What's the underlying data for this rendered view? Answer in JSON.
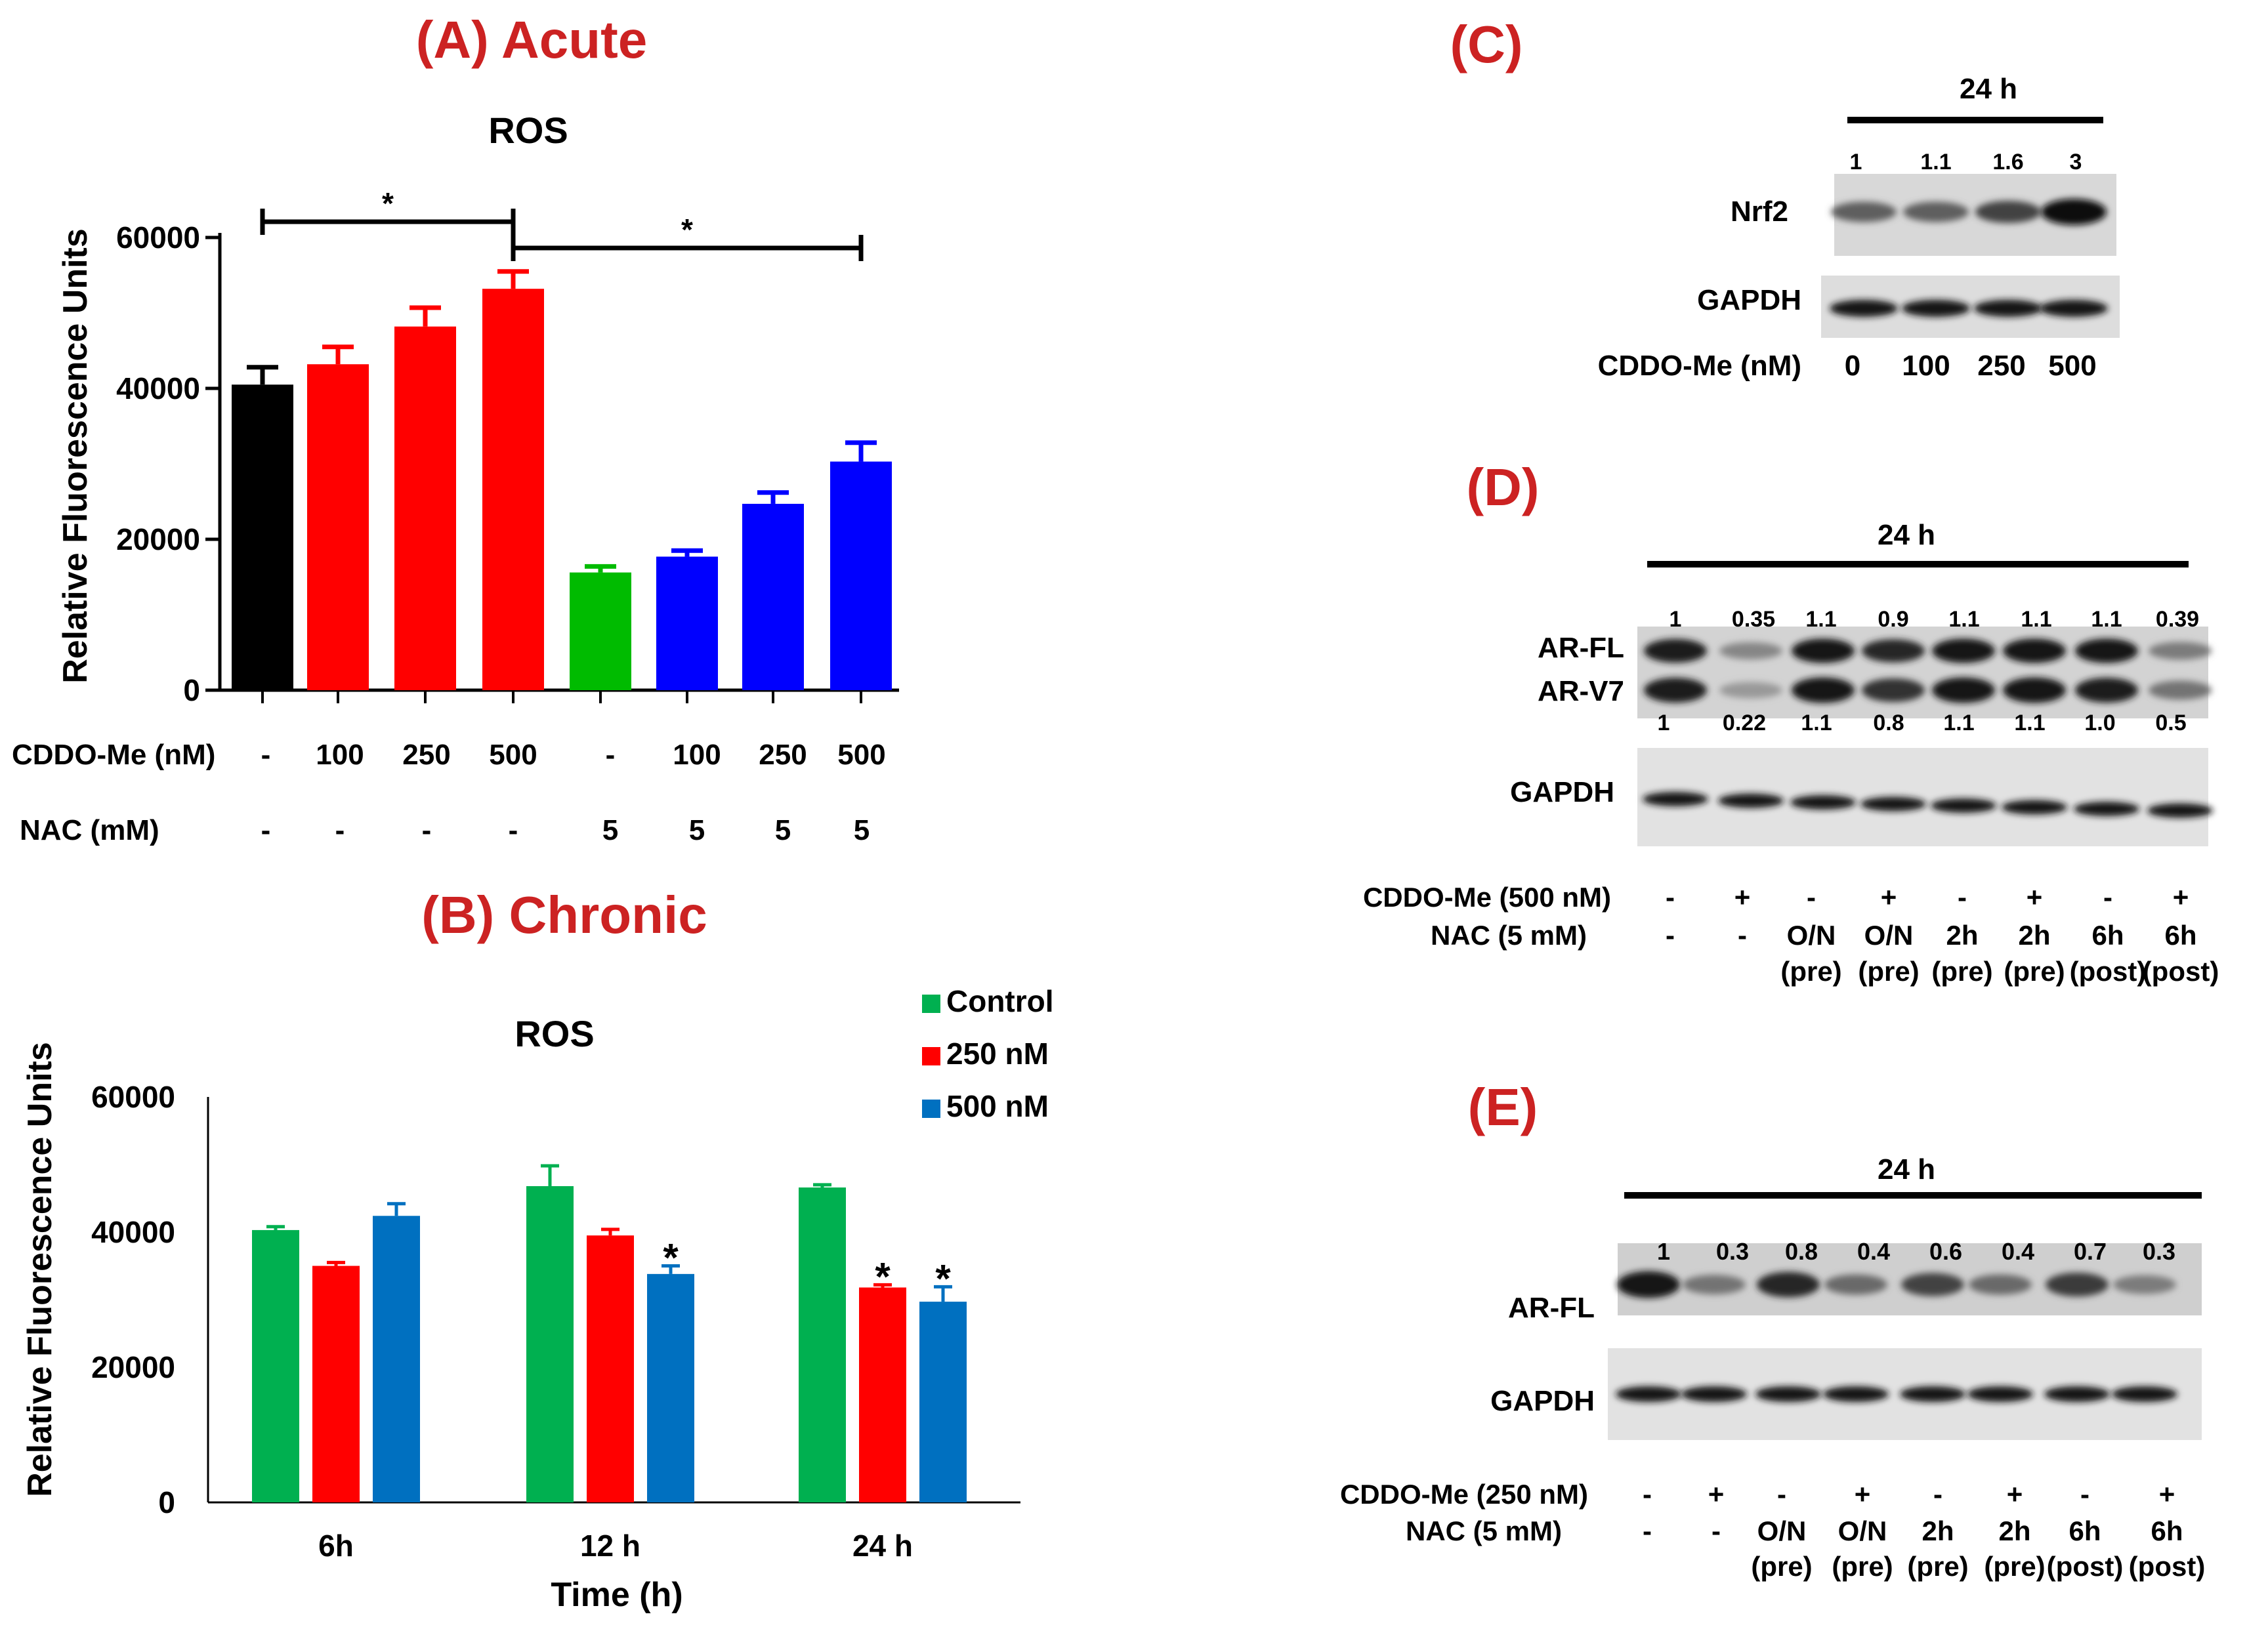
{
  "panel_titles": {
    "a": "(A) Acute",
    "b": "(B) Chronic",
    "c": "(C)",
    "d": "(D)",
    "e": "(E)"
  },
  "colors": {
    "panel_title": "#cc2222",
    "black": "#000000",
    "red": "#ff0000",
    "green": "#00bb00",
    "blue": "#0000ff",
    "series_control": "#00b050",
    "series_250": "#ff0000",
    "series_500": "#0070c0"
  },
  "chart_data": [
    {
      "id": "A",
      "type": "bar",
      "title": "ROS",
      "ylabel": "Relative Fluorescence Units",
      "xlabel": "",
      "ylim": [
        0,
        60000
      ],
      "yticks": [
        "0",
        "20000",
        "40000",
        "60000"
      ],
      "values": [
        40500,
        43200,
        48200,
        53200,
        15600,
        17700,
        24700,
        30300
      ],
      "errors": [
        2300,
        2300,
        2500,
        2300,
        800,
        800,
        1500,
        2500
      ],
      "bar_colors": [
        "black",
        "red",
        "red",
        "red",
        "green",
        "blue",
        "blue",
        "blue"
      ],
      "row_labels": [
        "CDDO-Me (nM)",
        "NAC (mM)"
      ],
      "cddo_row": [
        "-",
        "100",
        "250",
        "500",
        "-",
        "100",
        "250",
        "500"
      ],
      "nac_row": [
        "-",
        "-",
        "-",
        "-",
        "5",
        "5",
        "5",
        "5"
      ],
      "significance": [
        {
          "from": 0,
          "to": 3,
          "label": "*"
        },
        {
          "from": 3,
          "to": 7,
          "label": "*"
        }
      ]
    },
    {
      "id": "B",
      "type": "bar",
      "title": "ROS",
      "ylabel": "Relative Fluorescence Units",
      "xlabel": "Time (h)",
      "ylim": [
        0,
        60000
      ],
      "yticks": [
        "0",
        "20000",
        "40000",
        "60000"
      ],
      "categories": [
        "6h",
        "12 h",
        "24 h"
      ],
      "series": [
        {
          "name": "Control",
          "values": [
            40300,
            46800,
            46600
          ],
          "errors": [
            500,
            3000,
            400
          ]
        },
        {
          "name": "250 nM",
          "values": [
            35000,
            39500,
            31800
          ],
          "errors": [
            500,
            900,
            400
          ]
        },
        {
          "name": "500 nM",
          "values": [
            42400,
            33800,
            29700
          ],
          "errors": [
            1800,
            1200,
            2200
          ]
        }
      ],
      "significance": [
        {
          "category": 1,
          "series": 2,
          "label": "*"
        },
        {
          "category": 2,
          "series": 1,
          "label": "*"
        },
        {
          "category": 2,
          "series": 2,
          "label": "*"
        }
      ]
    }
  ],
  "blot_c": {
    "time_label": "24 h",
    "quant": [
      "1",
      "1.1",
      "1.6",
      "3"
    ],
    "bands": [
      "Nrf2",
      "GAPDH"
    ],
    "dose_label": "CDDO-Me (nM)",
    "doses": [
      "0",
      "100",
      "250",
      "500"
    ],
    "intensity": [
      0.55,
      0.55,
      0.7,
      1.0
    ]
  },
  "blot_d": {
    "time_label": "24 h",
    "quant_top": [
      "1",
      "0.35",
      "1.1",
      "0.9",
      "1.1",
      "1.1",
      "1.1",
      "0.39"
    ],
    "quant_bottom": [
      "1",
      "0.22",
      "1.1",
      "0.8",
      "1.1",
      "1.1",
      "1.0",
      "0.5"
    ],
    "bands": [
      "AR-FL",
      "AR-V7",
      "GAPDH"
    ],
    "cddo_label": "CDDO-Me (500 nM)",
    "nac_label": "NAC (5 mM)",
    "cddo": [
      "-",
      "+",
      "-",
      "+",
      "-",
      "+",
      "-",
      "+"
    ],
    "nac": [
      "-",
      "-",
      "O/N",
      "O/N",
      "2h",
      "2h",
      "6h",
      "6h"
    ],
    "nac_sub": [
      "",
      "",
      "(pre)",
      "(pre)",
      "(pre)",
      "(pre)",
      "(post)",
      "(post)"
    ],
    "intensity_fl": [
      0.9,
      0.35,
      0.95,
      0.85,
      0.95,
      0.95,
      0.95,
      0.4
    ],
    "intensity_v7": [
      0.9,
      0.25,
      0.95,
      0.8,
      0.95,
      0.95,
      0.9,
      0.45
    ]
  },
  "blot_e": {
    "time_label": "24 h",
    "quant": [
      "1",
      "0.3",
      "0.8",
      "0.4",
      "0.6",
      "0.4",
      "0.7",
      "0.3"
    ],
    "bands": [
      "AR-FL",
      "GAPDH"
    ],
    "cddo_label": "CDDO-Me (250 nM)",
    "nac_label": "NAC (5 mM)",
    "cddo": [
      "-",
      "+",
      "-",
      "+",
      "-",
      "+",
      "-",
      "+"
    ],
    "nac": [
      "-",
      "-",
      "O/N",
      "O/N",
      "2h",
      "2h",
      "6h",
      "6h"
    ],
    "nac_sub": [
      "",
      "",
      "(pre)",
      "(pre)",
      "(pre)",
      "(pre)",
      "(post)",
      "(post)"
    ],
    "intensity": [
      0.95,
      0.45,
      0.85,
      0.5,
      0.7,
      0.5,
      0.75,
      0.4
    ]
  }
}
